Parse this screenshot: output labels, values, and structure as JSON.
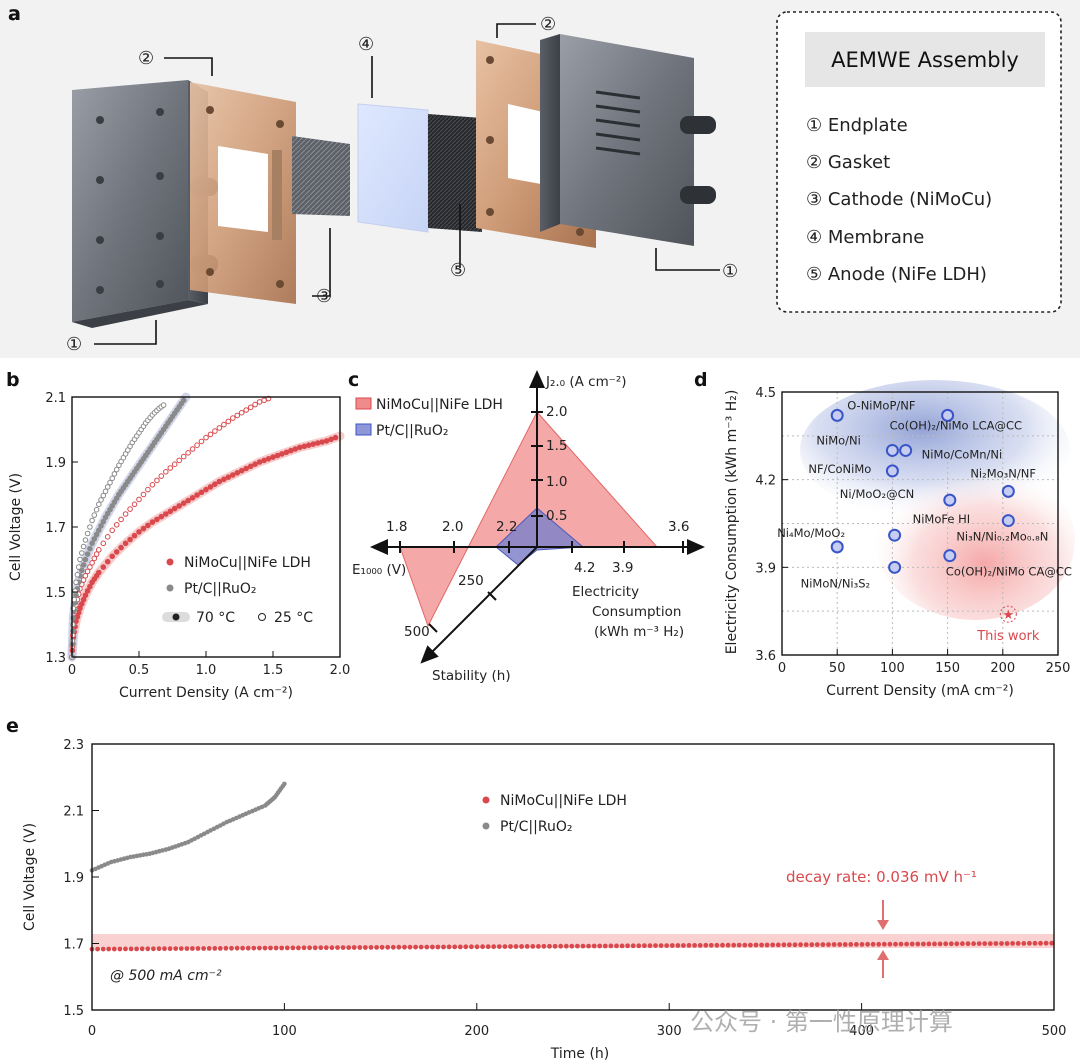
{
  "panel_labels": {
    "a": "a",
    "b": "b",
    "c": "c",
    "d": "d",
    "e": "e"
  },
  "assembly": {
    "title": "AEMWE Assembly",
    "items": [
      "① Endplate",
      "② Gasket",
      "③ Cathode (NiMoCu)",
      "④ Membrane",
      "⑤ Anode (NiFe LDH)"
    ],
    "callouts": {
      "c1": "①",
      "c2": "②",
      "c3": "③",
      "c4": "④",
      "c5": "⑤"
    }
  },
  "colors": {
    "red": "#d9484c",
    "red_light": "#f4b3b3",
    "gray": "#8a8a8a",
    "blue": "#3a55c8",
    "blue_fill": "#8e98d8",
    "purple": "#9a7fb8"
  },
  "watermark": "公众号 · 第一性原理计算",
  "chart_data": [
    {
      "panel": "b",
      "type": "scatter",
      "title": "",
      "xlabel": "Current Density (A cm⁻²)",
      "ylabel": "Cell Voltage (V)",
      "xlim": [
        0,
        2.0
      ],
      "ylim": [
        1.3,
        2.1
      ],
      "xticks": [
        "0",
        "0.5",
        "1.0",
        "1.5",
        "2.0"
      ],
      "yticks": [
        "1.3",
        "1.5",
        "1.7",
        "1.9",
        "2.1"
      ],
      "legend": [
        "NiMoCu||NiFe LDH",
        "Pt/C||RuO₂",
        "70 °C",
        "25 °C"
      ],
      "series": [
        {
          "name": "NiMoCu||NiFe LDH 70 °C",
          "x": [
            0,
            0.01,
            0.03,
            0.06,
            0.1,
            0.15,
            0.2,
            0.3,
            0.4,
            0.5,
            0.6,
            0.7,
            0.8,
            0.9,
            1.0,
            1.1,
            1.2,
            1.3,
            1.4,
            1.5,
            1.6,
            1.7,
            1.8,
            1.9,
            2.0
          ],
          "y": [
            1.3,
            1.36,
            1.41,
            1.45,
            1.49,
            1.53,
            1.56,
            1.61,
            1.65,
            1.685,
            1.715,
            1.74,
            1.765,
            1.79,
            1.815,
            1.84,
            1.86,
            1.88,
            1.9,
            1.915,
            1.93,
            1.945,
            1.955,
            1.965,
            1.98
          ]
        },
        {
          "name": "NiMoCu||NiFe LDH 25 °C",
          "x": [
            0,
            0.01,
            0.03,
            0.06,
            0.1,
            0.15,
            0.2,
            0.3,
            0.4,
            0.5,
            0.6,
            0.7,
            0.8,
            0.9,
            1.0,
            1.1,
            1.2,
            1.3,
            1.4,
            1.5
          ],
          "y": [
            1.3,
            1.4,
            1.46,
            1.51,
            1.55,
            1.59,
            1.63,
            1.69,
            1.74,
            1.785,
            1.83,
            1.87,
            1.905,
            1.94,
            1.975,
            2.005,
            2.035,
            2.06,
            2.085,
            2.1
          ]
        },
        {
          "name": "Pt/C||RuO₂ 70 °C",
          "x": [
            0,
            0.01,
            0.03,
            0.06,
            0.1,
            0.15,
            0.2,
            0.25,
            0.3,
            0.35,
            0.4,
            0.45,
            0.5,
            0.55,
            0.6,
            0.65,
            0.7,
            0.75,
            0.8,
            0.85
          ],
          "y": [
            1.3,
            1.42,
            1.49,
            1.55,
            1.6,
            1.65,
            1.69,
            1.73,
            1.765,
            1.8,
            1.83,
            1.86,
            1.89,
            1.92,
            1.95,
            1.98,
            2.01,
            2.04,
            2.07,
            2.1
          ]
        },
        {
          "name": "Pt/C||RuO₂ 25 °C",
          "x": [
            0,
            0.01,
            0.03,
            0.06,
            0.1,
            0.15,
            0.2,
            0.25,
            0.3,
            0.35,
            0.4,
            0.45,
            0.5,
            0.55,
            0.6,
            0.65,
            0.7
          ],
          "y": [
            1.3,
            1.45,
            1.53,
            1.6,
            1.66,
            1.72,
            1.77,
            1.81,
            1.85,
            1.89,
            1.925,
            1.96,
            1.99,
            2.02,
            2.045,
            2.065,
            2.08
          ]
        }
      ]
    },
    {
      "panel": "c",
      "type": "radar",
      "axes": [
        {
          "name": "J₂.₀ (A cm⁻²)",
          "ticks": [
            "0.5",
            "1.0",
            "1.5",
            "2.0"
          ]
        },
        {
          "name": "Electricity Consumption (kWh m⁻³ H₂)",
          "ticks": [
            "4.2",
            "3.9",
            "3.6"
          ]
        },
        {
          "name": "Stability (h)",
          "ticks": [
            "250",
            "500"
          ]
        },
        {
          "name": "E₁₀₀₀ (V)",
          "ticks": [
            "2.2",
            "2.0",
            "1.8"
          ]
        }
      ],
      "legend": [
        "NiMoCu||NiFe LDH",
        "Pt/C||RuO₂"
      ],
      "series": [
        {
          "name": "NiMoCu||NiFe LDH",
          "J2_0": 2.0,
          "electricity_consumption": 3.55,
          "stability_h": 500,
          "E1000_V": 1.8
        },
        {
          "name": "Pt/C||RuO₂",
          "J2_0": 0.48,
          "electricity_consumption": 4.22,
          "stability_h": 100,
          "E1000_V": 2.3
        }
      ]
    },
    {
      "panel": "d",
      "type": "scatter",
      "xlabel": "Current Density (mA cm⁻²)",
      "ylabel": "Electricity Consumption (kWh m⁻³ H₂)",
      "xlim": [
        0,
        250
      ],
      "ylim": [
        3.6,
        4.5
      ],
      "xticks": [
        "0",
        "50",
        "100",
        "150",
        "200",
        "250"
      ],
      "yticks": [
        "3.6",
        "3.9",
        "4.2",
        "4.5"
      ],
      "points": [
        {
          "label": "O-NiMoP/NF",
          "x": 50,
          "y": 4.42
        },
        {
          "label": "Co(OH)₂/NiMo LCA@CC",
          "x": 150,
          "y": 4.42
        },
        {
          "label": "NiMo/Ni",
          "x": 100,
          "y": 4.3
        },
        {
          "label": "NiMo/CoMn/Ni",
          "x": 112,
          "y": 4.3
        },
        {
          "label": "NF/CoNiMo",
          "x": 100,
          "y": 4.23
        },
        {
          "label": "Ni₂Mo₃N/NF",
          "x": 205,
          "y": 4.16
        },
        {
          "label": "Ni/MoO₂@CN",
          "x": 152,
          "y": 4.13
        },
        {
          "label": "Ni₄Mo/MoO₂",
          "x": 50,
          "y": 3.97
        },
        {
          "label": "NiMoFe HI",
          "x": 102,
          "y": 4.01
        },
        {
          "label": "Ni₃N/Ni₀.₂Mo₀.₈N",
          "x": 205,
          "y": 4.06
        },
        {
          "label": "NiMoN/Ni₃S₂",
          "x": 102,
          "y": 3.9
        },
        {
          "label": "Co(OH)₂/NiMo CA@CC",
          "x": 152,
          "y": 3.94
        }
      ],
      "highlight": {
        "label": "This work",
        "x": 205,
        "y": 3.74
      }
    },
    {
      "panel": "e",
      "type": "scatter",
      "xlabel": "Time (h)",
      "ylabel": "Cell Voltage (V)",
      "xlim": [
        0,
        500
      ],
      "ylim": [
        1.5,
        2.3
      ],
      "xticks": [
        "0",
        "100",
        "200",
        "300",
        "400",
        "500"
      ],
      "yticks": [
        "1.5",
        "1.7",
        "1.9",
        "2.1",
        "2.3"
      ],
      "legend": [
        "NiMoCu||NiFe LDH",
        "Pt/C||RuO₂"
      ],
      "annotations": {
        "decay": "decay rate: 0.036 mV h⁻¹",
        "condition": "@ 500 mA cm⁻²"
      },
      "series": [
        {
          "name": "NiMoCu||NiFe LDH",
          "t_start": 0,
          "t_end": 500,
          "v_start": 1.683,
          "v_end": 1.701
        },
        {
          "name": "Pt/C||RuO₂",
          "t": [
            0,
            10,
            20,
            30,
            40,
            50,
            60,
            70,
            80,
            90,
            95,
            100
          ],
          "v": [
            1.92,
            1.945,
            1.96,
            1.97,
            1.985,
            2.005,
            2.035,
            2.065,
            2.09,
            2.115,
            2.14,
            2.18
          ]
        }
      ]
    }
  ]
}
